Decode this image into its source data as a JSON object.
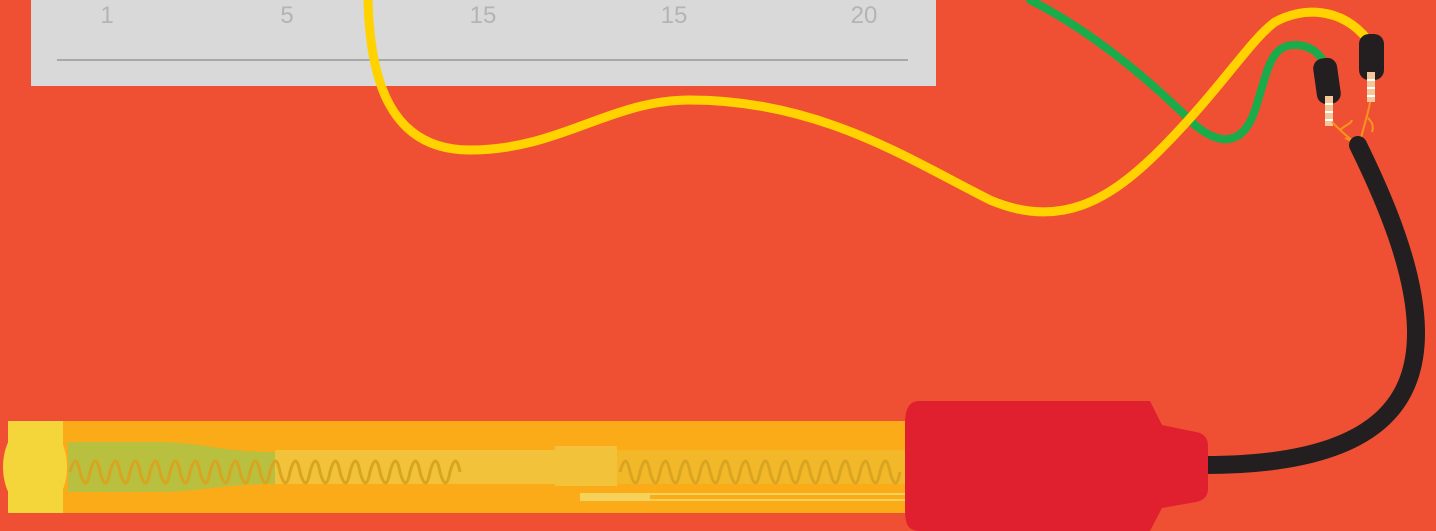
{
  "ruler": {
    "tick_labels": [
      "1",
      "5",
      "15",
      "15",
      "20"
    ]
  },
  "colors": {
    "background": "#ef5034",
    "ruler": "#d9d9d9",
    "ruler_text": "#b4b4b4",
    "yellow_wire": "#ffd200",
    "green_wire": "#1aab4b",
    "black_cable": "#231f20",
    "probe_tube": "#fbab18",
    "probe_handle": "#e0202e",
    "heater_coil": "#d9a520"
  },
  "icons": {
    "probe": "heat-probe-icon",
    "connector_left": "connector-plug-icon",
    "connector_right": "connector-plug-icon"
  }
}
